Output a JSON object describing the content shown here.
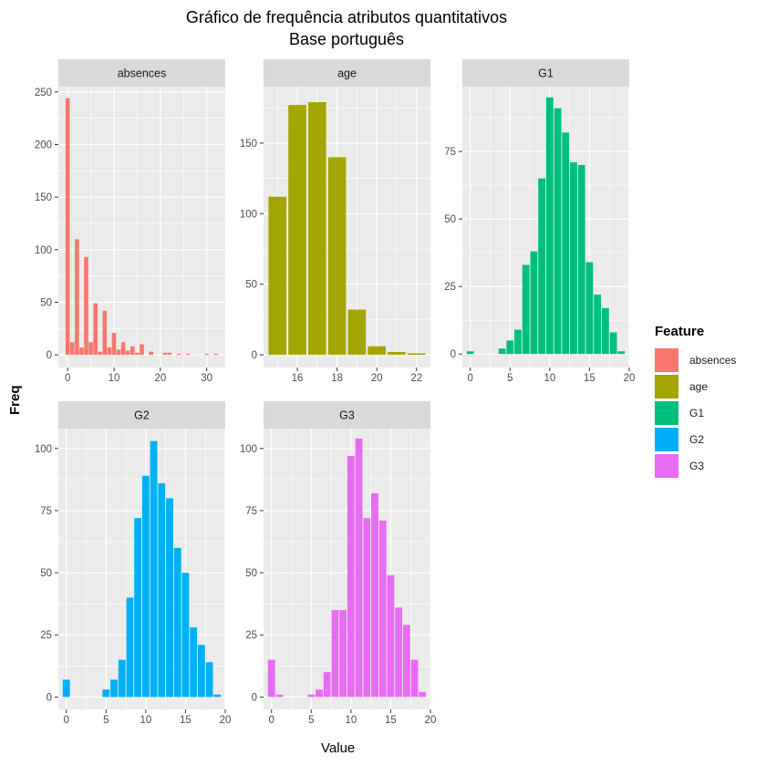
{
  "chart_data": {
    "type": "bar",
    "title": "Gráfico de frequência atributos quantitativos",
    "subtitle": "Base português",
    "xlabel": "Value",
    "ylabel": "Freq",
    "legend": {
      "title": "Feature",
      "placement": "right",
      "items": [
        {
          "label": "absences",
          "color": "#F8766D"
        },
        {
          "label": "age",
          "color": "#A3A500"
        },
        {
          "label": "G1",
          "color": "#00BF7D"
        },
        {
          "label": "G2",
          "color": "#00B0F6"
        },
        {
          "label": "G3",
          "color": "#E76BF3"
        }
      ]
    },
    "grid": true,
    "panels": [
      {
        "name": "absences",
        "color": "#F8766D",
        "xlim": [
          -2,
          34
        ],
        "ylim": [
          -12,
          255
        ],
        "xticks": [
          0,
          10,
          20,
          30
        ],
        "xminor": [
          5,
          15,
          25
        ],
        "yticks": [
          0,
          50,
          100,
          150,
          200,
          250
        ],
        "yminor": [
          25,
          75,
          125,
          175,
          225
        ],
        "bar_width": 0.9,
        "x": [
          0,
          1,
          2,
          3,
          4,
          5,
          6,
          7,
          8,
          9,
          10,
          11,
          12,
          13,
          14,
          15,
          16,
          18,
          21,
          22,
          24,
          26,
          30,
          32
        ],
        "values": [
          244,
          12,
          110,
          7,
          93,
          12,
          49,
          3,
          42,
          7,
          21,
          5,
          12,
          4,
          8,
          2,
          10,
          3,
          2,
          2,
          1,
          1,
          1,
          1
        ]
      },
      {
        "name": "age",
        "color": "#A3A500",
        "xlim": [
          14.3,
          22.7
        ],
        "ylim": [
          -9,
          190
        ],
        "xticks": [
          16,
          18,
          20,
          22
        ],
        "xminor": [
          15,
          17,
          19,
          21
        ],
        "yticks": [
          0,
          50,
          100,
          150
        ],
        "yminor": [
          25,
          75,
          125,
          175
        ],
        "bar_width": 0.9,
        "x": [
          15,
          16,
          17,
          18,
          19,
          20,
          21,
          22
        ],
        "values": [
          112,
          177,
          179,
          140,
          32,
          6,
          2,
          1
        ]
      },
      {
        "name": "G1",
        "color": "#00BF7D",
        "xlim": [
          -1,
          20
        ],
        "ylim": [
          -5,
          99
        ],
        "xticks": [
          0,
          5,
          10,
          15,
          20
        ],
        "xminor": [
          2.5,
          7.5,
          12.5,
          17.5
        ],
        "yticks": [
          0,
          25,
          50,
          75
        ],
        "yminor": [
          12.5,
          37.5,
          62.5,
          87.5
        ],
        "bar_width": 0.9,
        "x": [
          0,
          4,
          5,
          6,
          7,
          8,
          9,
          10,
          11,
          12,
          13,
          14,
          15,
          16,
          17,
          18,
          19
        ],
        "values": [
          1,
          2,
          5,
          9,
          33,
          38,
          65,
          95,
          91,
          82,
          71,
          70,
          34,
          22,
          17,
          8,
          1
        ]
      },
      {
        "name": "G2",
        "color": "#00B0F6",
        "xlim": [
          -1,
          20
        ],
        "ylim": [
          -5,
          108
        ],
        "xticks": [
          0,
          5,
          10,
          15,
          20
        ],
        "xminor": [
          2.5,
          7.5,
          12.5,
          17.5
        ],
        "yticks": [
          0,
          25,
          50,
          75,
          100
        ],
        "yminor": [
          12.5,
          37.5,
          62.5,
          87.5
        ],
        "bar_width": 0.9,
        "x": [
          0,
          5,
          6,
          7,
          8,
          9,
          10,
          11,
          12,
          13,
          14,
          15,
          16,
          17,
          18,
          19
        ],
        "values": [
          7,
          3,
          7,
          15,
          40,
          72,
          89,
          103,
          86,
          80,
          60,
          50,
          28,
          21,
          14,
          1
        ]
      },
      {
        "name": "G3",
        "color": "#E76BF3",
        "xlim": [
          -1,
          20
        ],
        "ylim": [
          -5,
          108
        ],
        "xticks": [
          0,
          5,
          10,
          15,
          20
        ],
        "xminor": [
          2.5,
          7.5,
          12.5,
          17.5
        ],
        "yticks": [
          0,
          25,
          50,
          75,
          100
        ],
        "yminor": [
          12.5,
          37.5,
          62.5,
          87.5
        ],
        "bar_width": 0.9,
        "x": [
          0,
          1,
          5,
          6,
          7,
          8,
          9,
          10,
          11,
          12,
          13,
          14,
          15,
          16,
          17,
          18,
          19
        ],
        "values": [
          15,
          1,
          1,
          3,
          10,
          35,
          35,
          97,
          104,
          72,
          82,
          71,
          49,
          36,
          29,
          15,
          2
        ]
      }
    ]
  }
}
